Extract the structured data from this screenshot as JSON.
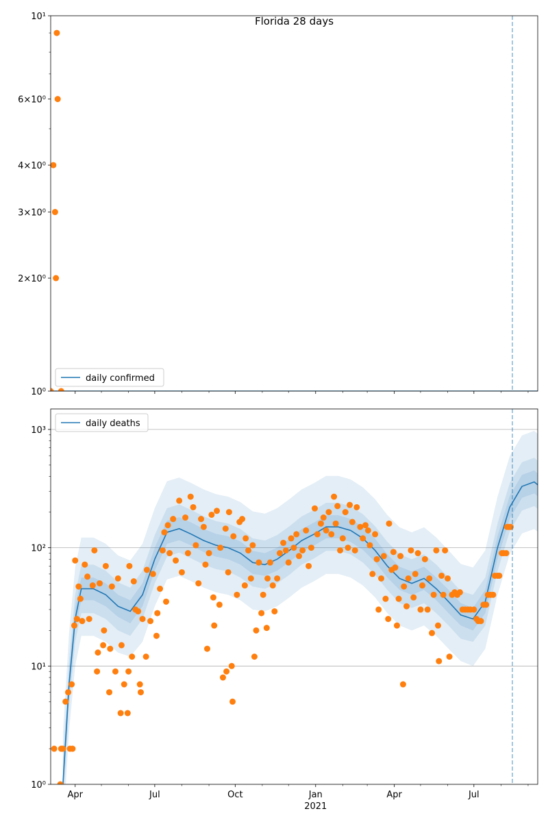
{
  "chart_data": [
    {
      "type": "line",
      "title": "Florida 28 days",
      "ylog": true,
      "legend": "lower left",
      "grid": false,
      "xlim": [
        63,
        620
      ],
      "ylim": [
        1,
        10
      ],
      "xticks": [
        91,
        182,
        274,
        366,
        456,
        547
      ],
      "xminorticks": [
        121,
        152,
        213,
        244,
        305,
        335,
        397,
        425,
        486,
        517,
        578,
        609
      ],
      "yticks": [
        {
          "value": 1,
          "label": "10⁰"
        },
        {
          "value": 2,
          "label": "2×10⁰"
        },
        {
          "value": 3,
          "label": "3×10⁰"
        },
        {
          "value": 4,
          "label": "4×10⁰"
        },
        {
          "value": 6,
          "label": "6×10⁰"
        },
        {
          "value": 10,
          "label": "10¹"
        }
      ],
      "yminorticks": [
        5,
        7,
        8,
        9
      ],
      "vline": 591,
      "series": [
        {
          "name": "daily confirmed",
          "color": "#1f77b4",
          "x": [
            63,
            620
          ],
          "values": [
            1,
            1
          ]
        },
        {
          "color": "#ff7f0e",
          "markers": true,
          "x": [
            63,
            66,
            68,
            69,
            70,
            71,
            75
          ],
          "values": [
            1,
            4,
            3,
            2,
            9,
            6,
            1
          ]
        }
      ]
    },
    {
      "type": "line",
      "ylog": true,
      "legend": "upper left",
      "grid": true,
      "xlim": [
        63,
        620
      ],
      "ylim": [
        1,
        1490
      ],
      "xticks": [
        {
          "value": 91,
          "label": "Apr"
        },
        {
          "value": 182,
          "label": "Jul"
        },
        {
          "value": 274,
          "label": "Oct"
        },
        {
          "value": 366,
          "label": "Jan"
        },
        {
          "value": 456,
          "label": "Apr"
        },
        {
          "value": 547,
          "label": "Jul"
        }
      ],
      "x_offset_label": {
        "value": 366,
        "label": "2021"
      },
      "xminorticks": [
        121,
        152,
        213,
        244,
        305,
        335,
        397,
        425,
        486,
        517,
        578,
        609
      ],
      "yticks": [
        {
          "value": 1,
          "label": "10⁰"
        },
        {
          "value": 10,
          "label": "10¹"
        },
        {
          "value": 100,
          "label": "10²"
        },
        {
          "value": 1000,
          "label": "10³"
        }
      ],
      "yminorticks": [
        2,
        3,
        4,
        5,
        6,
        7,
        8,
        9,
        20,
        30,
        40,
        50,
        60,
        70,
        80,
        90,
        200,
        300,
        400,
        500,
        600,
        700,
        800,
        900
      ],
      "vline": 591,
      "band_color": "#1f77b4",
      "band_x": [
        77,
        84,
        91,
        98,
        112,
        126,
        140,
        154,
        168,
        182,
        196,
        210,
        224,
        238,
        252,
        266,
        280,
        294,
        308,
        322,
        336,
        350,
        364,
        378,
        392,
        406,
        420,
        434,
        448,
        462,
        476,
        490,
        504,
        518,
        532,
        546,
        560,
        574,
        588,
        602,
        616,
        620
      ],
      "bands": [
        {
          "lower": [
            0.4,
            2.8,
            10,
            18,
            18,
            16,
            13,
            12,
            16,
            32,
            54,
            58,
            52,
            46,
            42,
            40,
            36,
            30,
            29,
            32,
            38,
            46,
            52,
            60,
            60,
            56,
            48,
            38,
            28,
            22,
            20,
            22,
            18,
            14,
            11,
            10,
            14,
            40,
            88,
            132,
            144,
            136
          ],
          "upper": [
            2.7,
            19,
            68,
            122,
            122,
            108,
            86,
            78,
            108,
            216,
            365,
            392,
            351,
            311,
            284,
            270,
            243,
            203,
            194,
            216,
            257,
            311,
            351,
            405,
            405,
            378,
            324,
            257,
            189,
            149,
            135,
            149,
            122,
            95,
            73,
            68,
            95,
            270,
            594,
            891,
            972,
            918
          ]
        },
        {
          "lower": [
            0.6,
            4.4,
            16,
            28,
            28,
            25,
            20,
            18,
            25,
            50,
            84,
            91,
            81,
            72,
            66,
            63,
            56,
            47,
            45,
            50,
            59,
            72,
            81,
            94,
            94,
            88,
            75,
            59,
            44,
            34,
            31,
            34,
            28,
            22,
            17,
            16,
            22,
            63,
            138,
            206,
            225,
            213
          ],
          "upper": [
            1.6,
            11,
            40,
            72,
            72,
            64,
            51,
            46,
            64,
            128,
            216,
            232,
            208,
            184,
            168,
            160,
            144,
            120,
            115,
            128,
            152,
            184,
            208,
            240,
            240,
            224,
            192,
            152,
            112,
            88,
            80,
            88,
            72,
            56,
            43,
            40,
            56,
            160,
            352,
            528,
            576,
            544
          ]
        },
        {
          "lower": [
            0.8,
            5.6,
            20,
            36,
            36,
            32,
            26,
            23,
            32,
            64,
            108,
            116,
            104,
            92,
            84,
            80,
            72,
            60,
            58,
            64,
            76,
            92,
            104,
            120,
            120,
            112,
            96,
            76,
            56,
            44,
            40,
            44,
            36,
            28,
            22,
            20,
            28,
            80,
            176,
            264,
            288,
            272
          ],
          "upper": [
            1.25,
            8.8,
            31,
            56,
            56,
            50,
            40,
            36,
            50,
            100,
            169,
            181,
            163,
            144,
            131,
            125,
            113,
            94,
            90,
            100,
            119,
            144,
            163,
            188,
            188,
            175,
            150,
            119,
            88,
            69,
            63,
            69,
            56,
            44,
            34,
            31,
            44,
            125,
            275,
            413,
            450,
            425
          ]
        }
      ],
      "series": [
        {
          "name": "daily deaths",
          "color": "#1f77b4",
          "x": [
            77,
            84,
            91,
            98,
            112,
            126,
            140,
            154,
            168,
            182,
            196,
            210,
            224,
            238,
            252,
            266,
            280,
            294,
            308,
            322,
            336,
            350,
            364,
            378,
            392,
            406,
            420,
            434,
            448,
            462,
            476,
            490,
            504,
            518,
            532,
            546,
            560,
            574,
            588,
            602,
            616,
            620
          ],
          "values": [
            1,
            7,
            25,
            45,
            45,
            40,
            32,
            29,
            40,
            80,
            135,
            145,
            130,
            115,
            105,
            100,
            90,
            75,
            72,
            80,
            95,
            115,
            130,
            150,
            150,
            140,
            120,
            95,
            70,
            55,
            50,
            55,
            45,
            35,
            27,
            25,
            35,
            100,
            220,
            330,
            360,
            340
          ]
        },
        {
          "color": "#ff7f0e",
          "markers": true,
          "x": [
            67,
            74,
            75,
            77,
            80,
            83,
            85,
            87,
            88,
            90,
            91,
            93,
            95,
            97,
            99,
            102,
            105,
            107,
            111,
            113,
            116,
            117,
            119,
            123,
            124,
            126,
            130,
            131,
            133,
            137,
            140,
            143,
            144,
            147,
            151,
            152,
            153,
            156,
            158,
            160,
            163,
            165,
            166,
            168,
            172,
            173,
            177,
            180,
            184,
            185,
            188,
            191,
            193,
            195,
            197,
            199,
            203,
            206,
            210,
            213,
            217,
            220,
            223,
            226,
            229,
            232,
            235,
            238,
            240,
            242,
            244,
            247,
            249,
            250,
            253,
            256,
            257,
            260,
            263,
            264,
            266,
            267,
            270,
            271,
            272,
            276,
            279,
            282,
            285,
            286,
            289,
            292,
            294,
            296,
            298,
            301,
            304,
            306,
            310,
            311,
            314,
            317,
            319,
            322,
            325,
            329,
            332,
            335,
            338,
            341,
            344,
            347,
            351,
            355,
            358,
            361,
            365,
            368,
            372,
            375,
            378,
            381,
            384,
            387,
            389,
            391,
            394,
            397,
            400,
            403,
            405,
            408,
            411,
            413,
            417,
            420,
            423,
            426,
            428,
            431,
            434,
            436,
            438,
            441,
            444,
            446,
            449,
            450,
            453,
            455,
            457,
            459,
            461,
            463,
            466,
            467,
            470,
            472,
            475,
            478,
            480,
            483,
            486,
            488,
            491,
            494,
            496,
            499,
            501,
            504,
            506,
            507,
            510,
            512,
            514,
            517,
            519,
            522,
            525,
            528,
            531,
            534,
            537,
            540,
            543,
            547,
            550,
            552,
            555,
            558,
            561,
            563,
            566,
            569,
            571,
            574,
            576,
            579,
            581,
            584,
            585,
            587,
            589
          ],
          "values": [
            2,
            1,
            2,
            2,
            5,
            6,
            2,
            7,
            2,
            22,
            78,
            25,
            47,
            37,
            24,
            72,
            57,
            25,
            48,
            95,
            9,
            13,
            50,
            15,
            20,
            70,
            6,
            14,
            47,
            9,
            55,
            4,
            15,
            7,
            4,
            9,
            70,
            12,
            52,
            30,
            29,
            7,
            6,
            25,
            12,
            65,
            24,
            60,
            18,
            28,
            45,
            95,
            135,
            35,
            155,
            90,
            175,
            78,
            250,
            62,
            180,
            90,
            270,
            220,
            105,
            50,
            175,
            150,
            72,
            14,
            90,
            190,
            38,
            22,
            205,
            33,
            100,
            8,
            145,
            9,
            62,
            200,
            10,
            5,
            125,
            40,
            165,
            175,
            48,
            120,
            95,
            55,
            105,
            12,
            20,
            75,
            28,
            40,
            21,
            55,
            75,
            48,
            29,
            55,
            90,
            110,
            95,
            75,
            120,
            100,
            130,
            85,
            95,
            140,
            70,
            100,
            215,
            130,
            160,
            180,
            140,
            200,
            130,
            270,
            160,
            225,
            95,
            120,
            200,
            100,
            230,
            165,
            95,
            220,
            150,
            120,
            155,
            140,
            105,
            60,
            130,
            80,
            30,
            55,
            85,
            37,
            25,
            160,
            65,
            92,
            68,
            22,
            37,
            85,
            7,
            47,
            32,
            55,
            95,
            38,
            60,
            90,
            30,
            48,
            80,
            30,
            55,
            19,
            40,
            95,
            22,
            11,
            58,
            40,
            95,
            55,
            12,
            40,
            42,
            40,
            42,
            30,
            30,
            30,
            30,
            30,
            25,
            24,
            24,
            33,
            33,
            40,
            40,
            40,
            58,
            58,
            58,
            90,
            90,
            90,
            150,
            150,
            150
          ]
        }
      ]
    }
  ]
}
